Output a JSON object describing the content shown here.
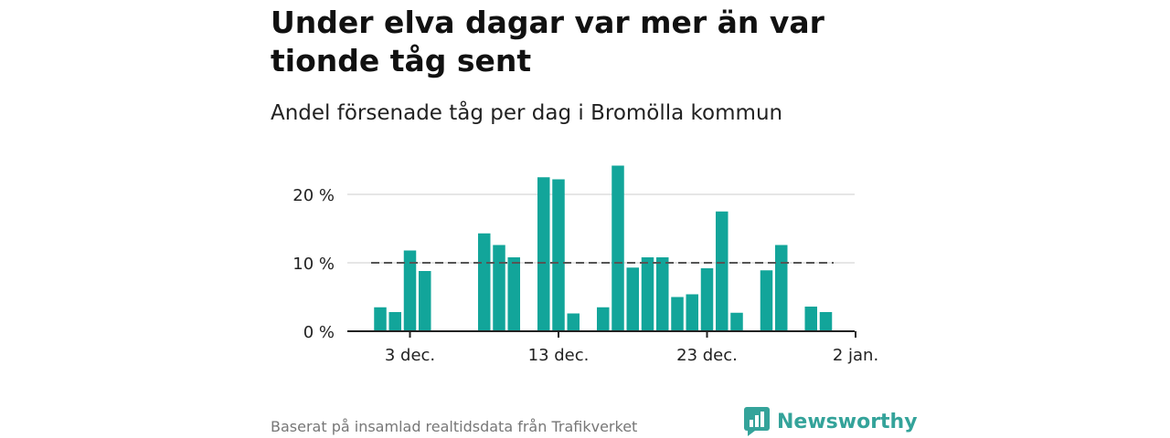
{
  "header": {
    "title": "Under elva dagar var mer än var tionde tåg sent",
    "subtitle": "Andel försenade tåg per dag i Bromölla kommun"
  },
  "footer": {
    "source": "Baserat på insamlad realtidsdata från Trafikverket",
    "brand": "Newsworthy"
  },
  "colors": {
    "bar": "#12a59a",
    "reference": "#555555",
    "grid": "#dddddd",
    "brand": "#34a39a"
  },
  "chart_data": {
    "type": "bar",
    "x": [
      "1 dec.",
      "2 dec.",
      "3 dec.",
      "4 dec.",
      "5 dec.",
      "6 dec.",
      "7 dec.",
      "8 dec.",
      "9 dec.",
      "10 dec.",
      "11 dec.",
      "12 dec.",
      "13 dec.",
      "14 dec.",
      "15 dec.",
      "16 dec.",
      "17 dec.",
      "18 dec.",
      "19 dec.",
      "20 dec.",
      "21 dec.",
      "22 dec.",
      "23 dec.",
      "24 dec.",
      "25 dec.",
      "26 dec.",
      "27 dec.",
      "28 dec.",
      "29 dec.",
      "30 dec.",
      "31 dec."
    ],
    "values": [
      3.5,
      2.8,
      11.8,
      8.8,
      null,
      null,
      null,
      14.3,
      12.6,
      10.8,
      null,
      22.5,
      22.2,
      2.6,
      null,
      3.5,
      24.2,
      9.3,
      10.8,
      10.8,
      5.0,
      5.4,
      9.2,
      17.5,
      2.7,
      null,
      8.9,
      12.6,
      null,
      3.6,
      2.8
    ],
    "reference_line": 10,
    "yticks": [
      "0 %",
      "10 %",
      "20 %"
    ],
    "ytick_values": [
      0,
      10,
      20
    ],
    "xticks": [
      "3 dec.",
      "13 dec.",
      "23 dec.",
      "2 jan."
    ],
    "xtick_positions": [
      "3 dec.",
      "13 dec.",
      "23 dec.",
      "2 jan."
    ],
    "ylim": [
      0,
      25
    ],
    "xlabel": "",
    "ylabel": ""
  }
}
